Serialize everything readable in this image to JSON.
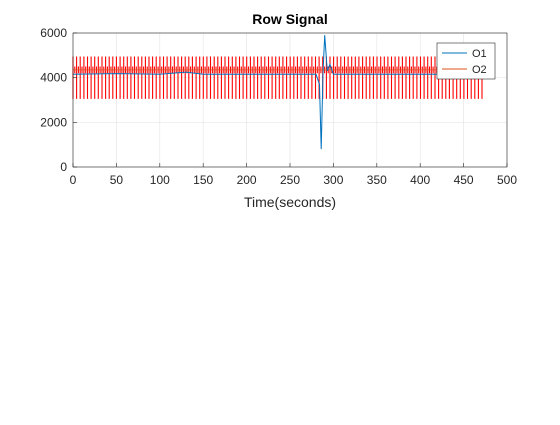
{
  "chart_data": {
    "type": "line",
    "title": "Row Signal",
    "xlabel": "Time(seconds)",
    "ylabel": "",
    "xlim": [
      0,
      500
    ],
    "ylim": [
      0,
      6000
    ],
    "x_ticks": [
      0,
      50,
      100,
      150,
      200,
      250,
      300,
      350,
      400,
      450,
      500
    ],
    "y_ticks": [
      0,
      2000,
      4000,
      6000
    ],
    "grid": true,
    "legend_position": "top-right",
    "series": [
      {
        "name": "O1",
        "color": "#0072BD",
        "baseline": 4150,
        "x": [
          0,
          50,
          100,
          130,
          150,
          200,
          250,
          280,
          284,
          286,
          288,
          290,
          293,
          296,
          300,
          350,
          400,
          450,
          475
        ],
        "y": [
          4150,
          4180,
          4150,
          4250,
          4150,
          4150,
          4150,
          4150,
          3700,
          800,
          4200,
          5900,
          4300,
          4600,
          4150,
          4150,
          4150,
          4150,
          4150
        ]
      },
      {
        "name": "O2",
        "color": "#D95319",
        "pulse_period": 4.17,
        "pulse_high": 4950,
        "pulse_low": 3050,
        "plateau": 4350,
        "x": [
          0,
          475
        ],
        "y": [
          4350,
          4350
        ]
      }
    ]
  }
}
